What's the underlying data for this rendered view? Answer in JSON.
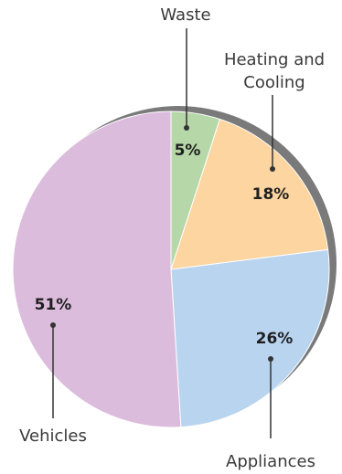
{
  "chart_data": {
    "type": "pie",
    "categories": [
      "Waste",
      "Heating and Cooling",
      "Appliances",
      "Vehicles"
    ],
    "values": [
      5,
      18,
      26,
      51
    ],
    "value_labels": [
      "5%",
      "18%",
      "26%",
      "51%"
    ],
    "label_lines": {
      "heating": [
        "Heating and",
        "Cooling"
      ]
    },
    "colors": [
      "#b6d7a8",
      "#fcd5a0",
      "#b9d4ef",
      "#dcbcdc"
    ],
    "shadow_color": "#7a7a7a",
    "start_angle_deg": 0,
    "direction": "clockwise",
    "legend": "none",
    "title": "",
    "xlabel": "",
    "ylabel": ""
  }
}
